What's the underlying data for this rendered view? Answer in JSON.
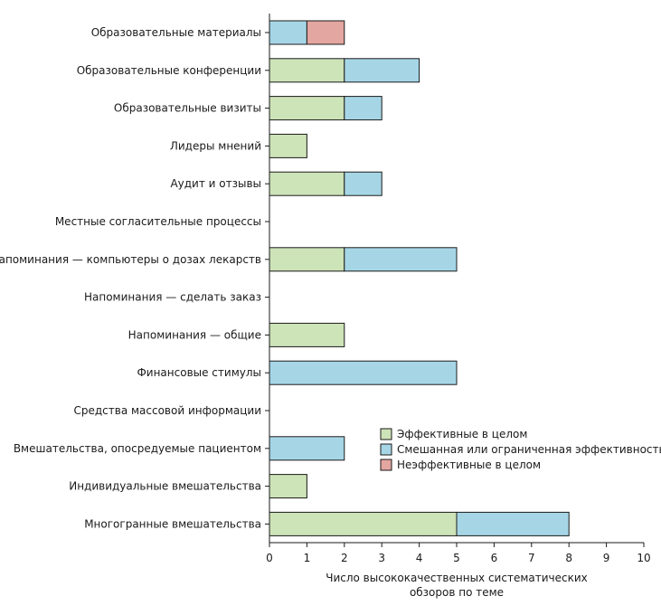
{
  "chart_data": {
    "type": "bar",
    "orientation": "horizontal",
    "stacked": true,
    "categories": [
      "Образовательные материалы",
      "Образовательные конференции",
      "Образовательные визиты",
      "Лидеры мнений",
      "Аудит и отзывы",
      "Местные согласительные процессы",
      "Напоминания — компьютеры о дозах лекарств",
      "Напоминания — сделать заказ",
      "Напоминания — общие",
      "Финансовые стимулы",
      "Средства массовой информации",
      "Вмешательства, опосредуемые пациентом",
      "Индивидуальные вмешательства",
      "Многогранные вмешательства"
    ],
    "series": [
      {
        "name": "Эффективные в целом",
        "color": "#cde3b8",
        "values": [
          0,
          2,
          2,
          1,
          2,
          0,
          2,
          0,
          2,
          0,
          0,
          0,
          1,
          5
        ]
      },
      {
        "name": "Смешанная или ограниченная эффективность",
        "color": "#a6d6e6",
        "values": [
          1,
          2,
          1,
          0,
          1,
          0,
          3,
          0,
          0,
          5,
          0,
          2,
          0,
          3
        ]
      },
      {
        "name": "Неэффективные в целом",
        "color": "#e4a6a0",
        "values": [
          1,
          0,
          0,
          0,
          0,
          0,
          0,
          0,
          0,
          0,
          0,
          0,
          0,
          0
        ]
      }
    ],
    "xlim": [
      0,
      10
    ],
    "xticks": [
      0,
      1,
      2,
      3,
      4,
      5,
      6,
      7,
      8,
      9,
      10
    ],
    "xlabel_lines": [
      "Число высококачественных систематических",
      "обзоров по теме"
    ],
    "ylabel": "",
    "legend_position": "lower-right",
    "grid": false
  }
}
